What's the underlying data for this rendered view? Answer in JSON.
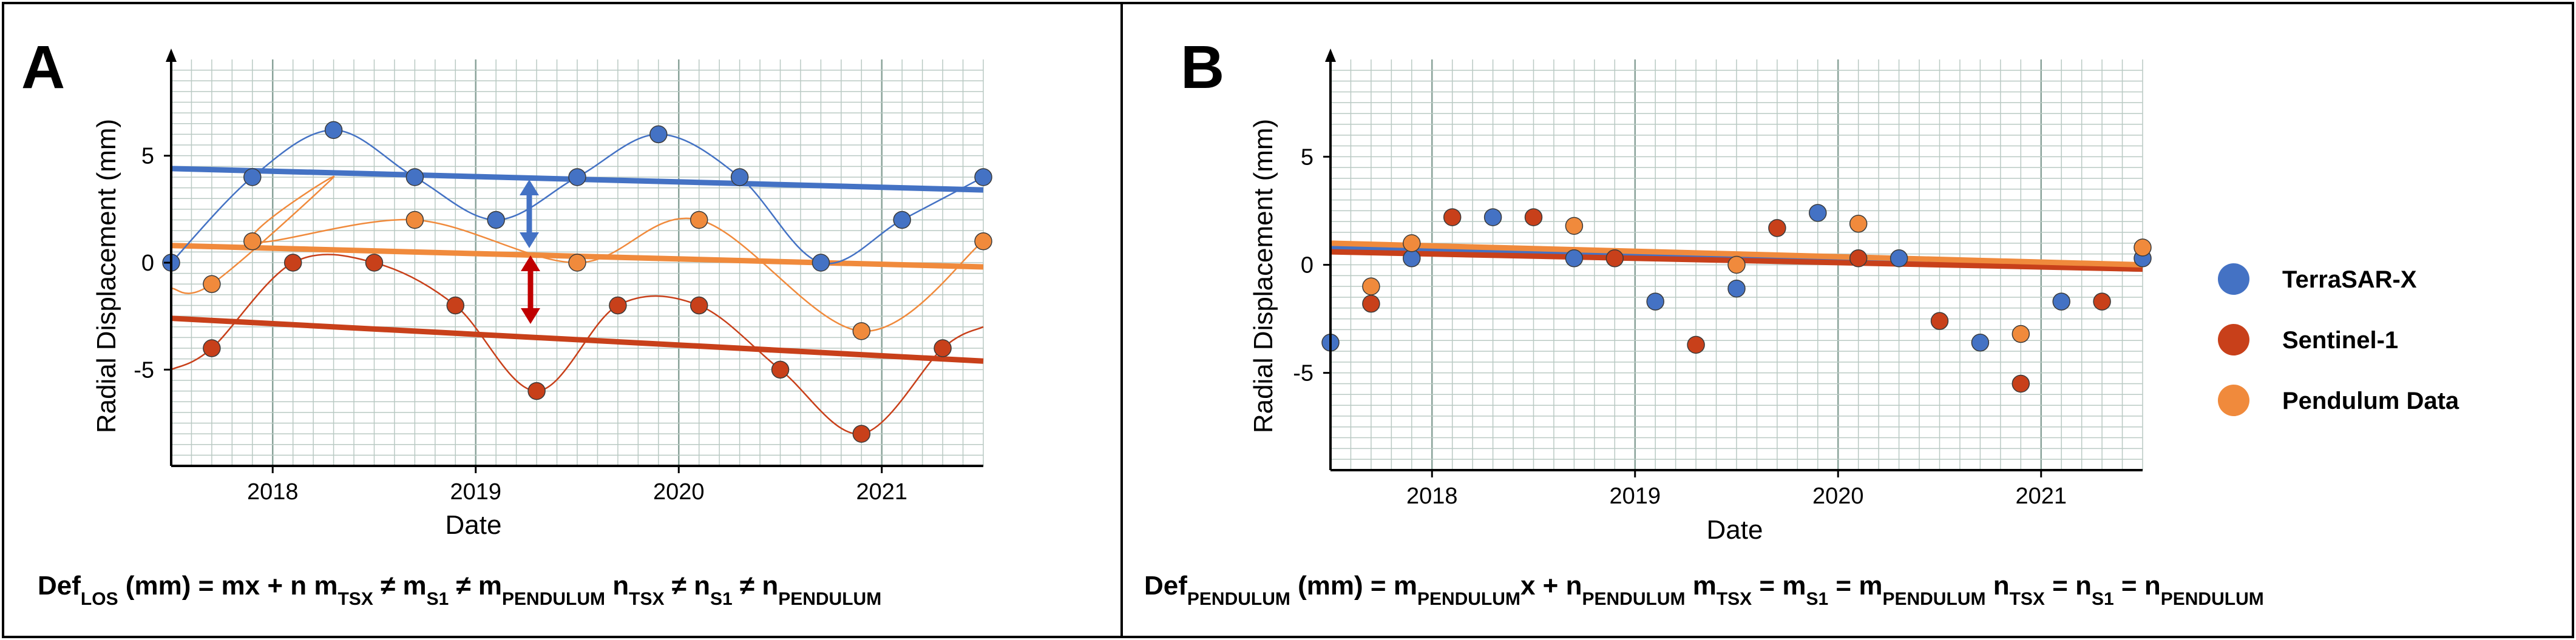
{
  "chart_data": [
    {
      "type": "scatter",
      "panel_label": "A",
      "xlabel": "Date",
      "ylabel": "Radial Displacement (mm)",
      "xlim": [
        2017.5,
        2021.5
      ],
      "ylim": [
        -9.5,
        9.5
      ],
      "x_ticks": [
        "2018",
        "2019",
        "2020",
        "2021"
      ],
      "x_tick_values": [
        2018,
        2019,
        2020,
        2021
      ],
      "y_ticks": [
        "5",
        "0",
        "-5"
      ],
      "y_tick_values": [
        5,
        0,
        -5
      ],
      "grid": true,
      "series": [
        {
          "name": "TerraSAR-X",
          "color": "#4472C4",
          "x": [
            2017.5,
            2017.9,
            2018.3,
            2018.7,
            2019.1,
            2019.5,
            2019.9,
            2020.3,
            2020.7,
            2021.1,
            2021.5
          ],
          "y": [
            0.0,
            4.0,
            6.2,
            4.0,
            2.0,
            4.0,
            6.0,
            4.0,
            0.0,
            2.0,
            4.0
          ],
          "trend": [
            4.4,
            3.4
          ]
        },
        {
          "name": "Sentinel-1",
          "color": "#C8401A",
          "x": [
            2017.7,
            2018.1,
            2018.5,
            2018.9,
            2019.3,
            2019.7,
            2020.1,
            2020.5,
            2020.9,
            2021.3
          ],
          "y": [
            -4.0,
            0.0,
            0.0,
            -2.0,
            -6.0,
            -2.0,
            -2.0,
            -5.0,
            -8.0,
            -4.0
          ],
          "trend": [
            -2.6,
            -4.6
          ]
        },
        {
          "name": "Pendulum Data",
          "color": "#F08A3C",
          "x": [
            2017.7,
            2017.9,
            2018.7,
            2019.5,
            2020.1,
            2020.9,
            2021.5
          ],
          "y": [
            -1.0,
            1.0,
            2.0,
            0.0,
            2.0,
            -3.2,
            1.0
          ],
          "trend": [
            0.8,
            -0.2
          ]
        }
      ],
      "formula": {
        "main": "Def",
        "main_sub": "LOS",
        "main_rest": " (mm) = mx + n",
        "m_expr": "m",
        "m_subs": [
          "TSX",
          "S1",
          "PENDULUM"
        ],
        "m_op": " ≠ ",
        "n_expr": "n",
        "n_subs": [
          "TSX",
          "S1",
          "PENDULUM"
        ],
        "n_op": " ≠ "
      }
    },
    {
      "type": "scatter",
      "panel_label": "B",
      "xlabel": "Date",
      "ylabel": "Radial Displacement (mm)",
      "xlim": [
        2017.5,
        2021.5
      ],
      "ylim": [
        -9.5,
        9.5
      ],
      "x_ticks": [
        "2018",
        "2019",
        "2020",
        "2021"
      ],
      "x_tick_values": [
        2018,
        2019,
        2020,
        2021
      ],
      "y_ticks": [
        "5",
        "0",
        "-5"
      ],
      "y_tick_values": [
        5,
        0,
        -5
      ],
      "grid": true,
      "series": [
        {
          "name": "TerraSAR-X",
          "color": "#4472C4",
          "x": [
            2017.5,
            2017.9,
            2018.3,
            2018.7,
            2019.1,
            2019.5,
            2019.9,
            2020.3,
            2020.7,
            2021.1,
            2021.5
          ],
          "y": [
            -3.6,
            0.3,
            2.2,
            0.3,
            -1.7,
            -1.1,
            2.4,
            0.3,
            -3.6,
            -1.7,
            0.3
          ],
          "trend": [
            0.8,
            -0.2
          ]
        },
        {
          "name": "Sentinel-1",
          "color": "#C8401A",
          "x": [
            2017.7,
            2018.1,
            2018.5,
            2018.9,
            2019.3,
            2019.7,
            2020.1,
            2020.5,
            2020.9,
            2021.3
          ],
          "y": [
            -1.8,
            2.2,
            2.2,
            0.3,
            -3.7,
            1.7,
            0.3,
            -2.6,
            -5.5,
            -1.7
          ],
          "trend": [
            0.6,
            -0.2
          ]
        },
        {
          "name": "Pendulum Data",
          "color": "#F08A3C",
          "x": [
            2017.7,
            2017.9,
            2018.7,
            2019.5,
            2020.1,
            2020.9,
            2021.5
          ],
          "y": [
            -1.0,
            1.0,
            1.8,
            0.0,
            1.9,
            -3.2,
            0.8
          ],
          "trend": [
            1.0,
            0.0
          ]
        }
      ],
      "legend": [
        "TerraSAR-X",
        "Sentinel-1",
        "Pendulum Data"
      ],
      "formula": {
        "main": "Def",
        "main_sub": "PENDULUM",
        "main_rest": " (mm) = ",
        "main_m": "m",
        "main_m_sub": "PENDULUM",
        "main_x": "x + ",
        "main_n": "n",
        "main_n_sub": "PENDULUM",
        "m_expr": "m",
        "m_subs": [
          "TSX",
          "S1",
          "PENDULUM"
        ],
        "m_op": " = ",
        "n_expr": "n",
        "n_subs": [
          "TSX",
          "S1",
          "PENDULUM"
        ],
        "n_op": " = "
      }
    }
  ]
}
